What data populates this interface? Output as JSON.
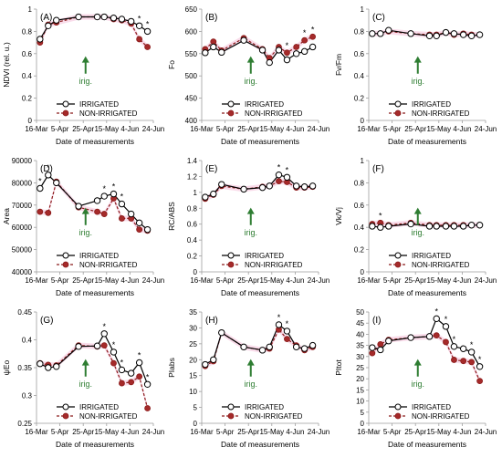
{
  "figure": {
    "legend_labels": [
      "IRRIGATED",
      "NON-IRRIGATED"
    ],
    "annotation": "irig.",
    "colors": {
      "irrigated_line": "#000000",
      "irrigated_marker_fill": "#ffffff",
      "non_irrigated_line": "#8b1a1a",
      "non_irrigated_marker_fill": "#a52a2a",
      "error_band": "#f4bfd8",
      "arrow": "#2e7d32",
      "axis": "#9e9e9e",
      "grid": "#e6e6e6"
    },
    "icons": [
      "open-circle-marker",
      "filled-circle-marker",
      "up-arrow"
    ]
  },
  "chart_data": [
    {
      "panel": "(A)",
      "type": "line",
      "title": "",
      "xlabel": "Date of measurements",
      "ylabel": "NDVI (rel. u.)",
      "x": [
        "16-Mar",
        "5-Apr",
        "25-Apr",
        "15-May",
        "4-Jun",
        "24-Jun"
      ],
      "x_days": [
        0,
        20,
        40,
        60,
        80,
        100
      ],
      "ylim": [
        0,
        1
      ],
      "yticks": [
        "0",
        "0.2",
        "0.4",
        "0.6",
        "0.8",
        "1"
      ],
      "grid": false,
      "series": [
        {
          "name": "IRRIGATED",
          "x": [
            3,
            10,
            17,
            36,
            52,
            58,
            66,
            73,
            81,
            88,
            95
          ],
          "y": [
            0.73,
            0.85,
            0.9,
            0.93,
            0.93,
            0.93,
            0.92,
            0.91,
            0.89,
            0.85,
            0.8
          ]
        },
        {
          "name": "NON-IRRIGATED",
          "x": [
            3,
            10,
            17,
            36,
            52,
            58,
            66,
            73,
            81,
            88,
            95
          ],
          "y": [
            0.7,
            0.86,
            0.88,
            0.93,
            0.93,
            0.93,
            0.91,
            0.9,
            0.87,
            0.73,
            0.66
          ]
        }
      ],
      "stars": [
        88,
        95
      ],
      "arrow_x": 42
    },
    {
      "panel": "(B)",
      "type": "line",
      "title": "",
      "xlabel": "Date of measurements",
      "ylabel": "Fo",
      "x": [
        "16-Mar",
        "5-Apr",
        "25-Apr",
        "15-May",
        "4-Jun",
        "24-Jun"
      ],
      "x_days": [
        0,
        20,
        40,
        60,
        80,
        100
      ],
      "ylim": [
        400,
        650
      ],
      "yticks": [
        "400",
        "450",
        "500",
        "550",
        "600",
        "650"
      ],
      "grid": false,
      "series": [
        {
          "name": "IRRIGATED",
          "x": [
            3,
            10,
            17,
            36,
            52,
            58,
            66,
            73,
            81,
            88,
            95
          ],
          "y": [
            552,
            565,
            553,
            580,
            558,
            530,
            558,
            536,
            550,
            555,
            565
          ]
        },
        {
          "name": "NON-IRRIGATED",
          "x": [
            3,
            10,
            17,
            36,
            52,
            58,
            66,
            73,
            81,
            88,
            95
          ],
          "y": [
            560,
            577,
            557,
            585,
            560,
            540,
            565,
            552,
            565,
            580,
            588
          ]
        }
      ],
      "stars": [
        73,
        88,
        95
      ],
      "arrow_x": 42
    },
    {
      "panel": "(C)",
      "type": "line",
      "title": "",
      "xlabel": "Date of measurements",
      "ylabel": "Fv/Fm",
      "x": [
        "16-Mar",
        "5-Apr",
        "25-Apr",
        "15-May",
        "4-Jun",
        "24-Jun"
      ],
      "x_days": [
        0,
        20,
        40,
        60,
        80,
        100
      ],
      "ylim": [
        0,
        1
      ],
      "yticks": [
        "0",
        "0.2",
        "0.4",
        "0.6",
        "0.8",
        "1"
      ],
      "grid": false,
      "series": [
        {
          "name": "IRRIGATED",
          "x": [
            3,
            10,
            17,
            36,
            52,
            58,
            66,
            73,
            81,
            88,
            95
          ],
          "y": [
            0.78,
            0.78,
            0.81,
            0.78,
            0.76,
            0.76,
            0.79,
            0.78,
            0.77,
            0.76,
            0.77
          ]
        },
        {
          "name": "NON-IRRIGATED",
          "x": [
            3,
            10,
            17,
            36,
            52,
            58,
            66,
            73,
            81,
            88,
            95
          ],
          "y": [
            0.78,
            0.78,
            0.8,
            0.78,
            0.77,
            0.77,
            0.79,
            0.77,
            0.78,
            0.77,
            0.77
          ]
        }
      ],
      "stars": [],
      "arrow_x": 42
    },
    {
      "panel": "(D)",
      "type": "line",
      "title": "",
      "xlabel": "Date of measurements",
      "ylabel": "Area",
      "x": [
        "16-Mar",
        "5-Apr",
        "25-Apr",
        "15-May",
        "4-Jun",
        "24-Jun"
      ],
      "x_days": [
        0,
        20,
        40,
        60,
        80,
        100
      ],
      "ylim": [
        40000,
        90000
      ],
      "yticks": [
        "40000",
        "50000",
        "60000",
        "70000",
        "80000",
        "90000"
      ],
      "grid": false,
      "series": [
        {
          "name": "IRRIGATED",
          "x": [
            3,
            10,
            17,
            36,
            52,
            58,
            66,
            73,
            81,
            88,
            95
          ],
          "y": [
            77500,
            83500,
            80000,
            69500,
            72000,
            74000,
            75000,
            70500,
            66000,
            62000,
            59000
          ]
        },
        {
          "name": "NON-IRRIGATED",
          "x": [
            3,
            10,
            17,
            36,
            52,
            58,
            66,
            73,
            81,
            88,
            95
          ],
          "y": [
            67000,
            66500,
            80500,
            69000,
            67000,
            66000,
            73000,
            64000,
            64000,
            59000,
            58500
          ]
        }
      ],
      "stars": [
        3,
        10,
        58,
        66,
        73
      ],
      "arrow_x": 42
    },
    {
      "panel": "(E)",
      "type": "line",
      "title": "",
      "xlabel": "Date of measurements",
      "ylabel": "RC/ABS",
      "x": [
        "16-Mar",
        "5-Apr",
        "25-Apr",
        "15-May",
        "4-Jun",
        "24-Jun"
      ],
      "x_days": [
        0,
        20,
        40,
        60,
        80,
        100
      ],
      "ylim": [
        0,
        1.4
      ],
      "yticks": [
        "0",
        "0.2",
        "0.4",
        "0.6",
        "0.8",
        "1",
        "1.2",
        "1.4"
      ],
      "grid": false,
      "series": [
        {
          "name": "IRRIGATED",
          "x": [
            3,
            10,
            17,
            36,
            52,
            58,
            66,
            73,
            81,
            88,
            95
          ],
          "y": [
            0.94,
            0.98,
            1.1,
            1.04,
            1.06,
            1.08,
            1.22,
            1.19,
            1.08,
            1.07,
            1.08
          ]
        },
        {
          "name": "NON-IRRIGATED",
          "x": [
            3,
            10,
            17,
            36,
            52,
            58,
            66,
            73,
            81,
            88,
            95
          ],
          "y": [
            0.92,
            0.97,
            1.08,
            1.04,
            1.07,
            1.08,
            1.14,
            1.13,
            1.06,
            1.06,
            1.07
          ]
        }
      ],
      "stars": [
        66,
        73
      ],
      "arrow_x": 42
    },
    {
      "panel": "(F)",
      "type": "line",
      "title": "",
      "xlabel": "Date of measurements",
      "ylabel": "Vk/Vj",
      "x": [
        "16-Mar",
        "5-Apr",
        "25-Apr",
        "15-May",
        "4-Jun",
        "24-Jun"
      ],
      "x_days": [
        0,
        20,
        40,
        60,
        80,
        100
      ],
      "ylim": [
        0,
        1
      ],
      "yticks": [
        "0",
        "0.2",
        "0.4",
        "0.6",
        "0.8",
        "1"
      ],
      "grid": false,
      "series": [
        {
          "name": "IRRIGATED",
          "x": [
            3,
            10,
            17,
            36,
            52,
            58,
            66,
            73,
            81,
            88,
            95
          ],
          "y": [
            0.41,
            0.4,
            0.41,
            0.43,
            0.41,
            0.41,
            0.41,
            0.41,
            0.41,
            0.42,
            0.42
          ]
        },
        {
          "name": "NON-IRRIGATED",
          "x": [
            3,
            10,
            17,
            36,
            52,
            58,
            66,
            73,
            81,
            88,
            95
          ],
          "y": [
            0.43,
            0.44,
            0.42,
            0.44,
            0.42,
            0.42,
            0.42,
            0.42,
            0.42,
            0.42,
            0.42
          ]
        }
      ],
      "stars": [
        10
      ],
      "arrow_x": 42
    },
    {
      "panel": "(G)",
      "type": "line",
      "title": "",
      "xlabel": "Date of measurements",
      "ylabel": "ψEo",
      "x": [
        "16-Mar",
        "5-Apr",
        "25-Apr",
        "15-May",
        "4-Jun",
        "24-Jun"
      ],
      "x_days": [
        0,
        20,
        40,
        60,
        80,
        100
      ],
      "ylim": [
        0.25,
        0.45
      ],
      "yticks": [
        "0.25",
        "0.3",
        "0.35",
        "0.4",
        "0.45"
      ],
      "grid": false,
      "series": [
        {
          "name": "IRRIGATED",
          "x": [
            3,
            10,
            17,
            36,
            52,
            58,
            66,
            73,
            81,
            88,
            95
          ],
          "y": [
            0.357,
            0.35,
            0.352,
            0.388,
            0.389,
            0.411,
            0.378,
            0.346,
            0.34,
            0.359,
            0.32
          ]
        },
        {
          "name": "NON-IRRIGATED",
          "x": [
            3,
            10,
            17,
            36,
            52,
            58,
            66,
            73,
            81,
            88,
            95
          ],
          "y": [
            0.358,
            0.355,
            0.354,
            0.39,
            0.388,
            0.39,
            0.358,
            0.322,
            0.324,
            0.334,
            0.277
          ]
        }
      ],
      "stars": [
        58,
        66,
        73,
        88,
        95
      ],
      "arrow_x": 42
    },
    {
      "panel": "(H)",
      "type": "line",
      "title": "",
      "xlabel": "Date of measurements",
      "ylabel": "PIabs",
      "x": [
        "16-Mar",
        "5-Apr",
        "25-Apr",
        "15-May",
        "4-Jun",
        "24-Jun"
      ],
      "x_days": [
        0,
        20,
        40,
        60,
        80,
        100
      ],
      "ylim": [
        0,
        35
      ],
      "yticks": [
        "0",
        "5",
        "10",
        "15",
        "20",
        "25",
        "30",
        "35"
      ],
      "grid": false,
      "series": [
        {
          "name": "IRRIGATED",
          "x": [
            3,
            10,
            17,
            36,
            52,
            58,
            66,
            73,
            81,
            88,
            95
          ],
          "y": [
            18.5,
            20.0,
            28.5,
            24.0,
            23.0,
            24.0,
            31.0,
            29.0,
            24.0,
            23.5,
            24.5
          ]
        },
        {
          "name": "NON-IRRIGATED",
          "x": [
            3,
            10,
            17,
            36,
            52,
            58,
            66,
            73,
            81,
            88,
            95
          ],
          "y": [
            18.0,
            19.5,
            28.5,
            24.0,
            23.0,
            23.5,
            29.5,
            26.5,
            24.5,
            23.0,
            24.0
          ]
        }
      ],
      "stars": [
        66,
        73
      ],
      "arrow_x": 42
    },
    {
      "panel": "(I)",
      "type": "line",
      "title": "",
      "xlabel": "Date of measurements",
      "ylabel": "PItot",
      "x": [
        "16-Mar",
        "5-Apr",
        "25-Apr",
        "15-May",
        "4-Jun",
        "24-Jun"
      ],
      "x_days": [
        0,
        20,
        40,
        60,
        80,
        100
      ],
      "ylim": [
        0,
        50
      ],
      "yticks": [
        "0",
        "5",
        "10",
        "15",
        "20",
        "25",
        "30",
        "35",
        "40",
        "45",
        "50"
      ],
      "grid": false,
      "series": [
        {
          "name": "IRRIGATED",
          "x": [
            3,
            10,
            17,
            36,
            52,
            58,
            66,
            73,
            81,
            88,
            95
          ],
          "y": [
            34.0,
            33.0,
            37.0,
            38.5,
            39.0,
            47.0,
            43.5,
            34.5,
            33.5,
            32.0,
            25.5
          ]
        },
        {
          "name": "NON-IRRIGATED",
          "x": [
            3,
            10,
            17,
            36,
            52,
            58,
            66,
            73,
            81,
            88,
            95
          ],
          "y": [
            31.5,
            35.5,
            37.5,
            38.5,
            39.0,
            39.5,
            36.5,
            28.5,
            28.0,
            27.5,
            19.0
          ]
        }
      ],
      "stars": [
        58,
        66,
        73,
        88,
        95
      ],
      "arrow_x": 42
    }
  ]
}
